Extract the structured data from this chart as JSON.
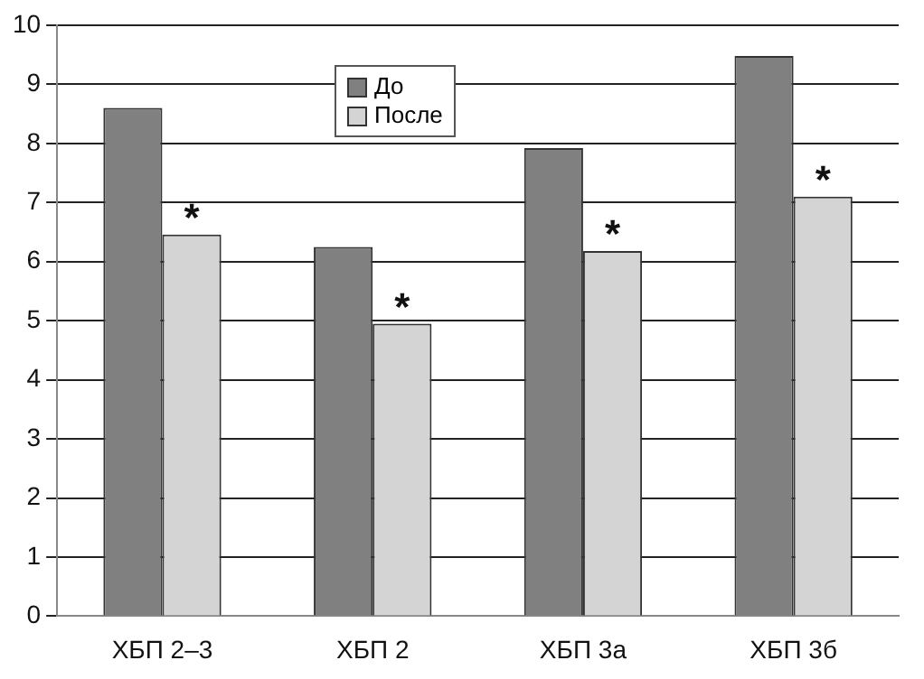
{
  "chart_data": {
    "type": "bar",
    "categories": [
      "ХБП 2–3",
      "ХБП 2",
      "ХБП 3а",
      "ХБП 3б"
    ],
    "series": [
      {
        "name": "До",
        "color": "#808080",
        "values": [
          8.6,
          6.25,
          7.92,
          9.48
        ]
      },
      {
        "name": "После",
        "color": "#d4d4d4",
        "values": [
          6.46,
          4.95,
          6.18,
          7.1
        ]
      }
    ],
    "ylim": [
      0,
      10
    ],
    "yticks": [
      0,
      1,
      2,
      3,
      4,
      5,
      6,
      7,
      8,
      9,
      10
    ],
    "grid": "y",
    "legend": "top",
    "annotations": [
      {
        "text": "*",
        "x": "ХБП 2–3",
        "y": 6.46
      },
      {
        "text": "*",
        "x": "ХБП 2",
        "y": 4.95
      },
      {
        "text": "*",
        "x": "ХБП 3а",
        "y": 6.18
      },
      {
        "text": "*",
        "x": "ХБП 3б",
        "y": 7.1
      }
    ]
  }
}
